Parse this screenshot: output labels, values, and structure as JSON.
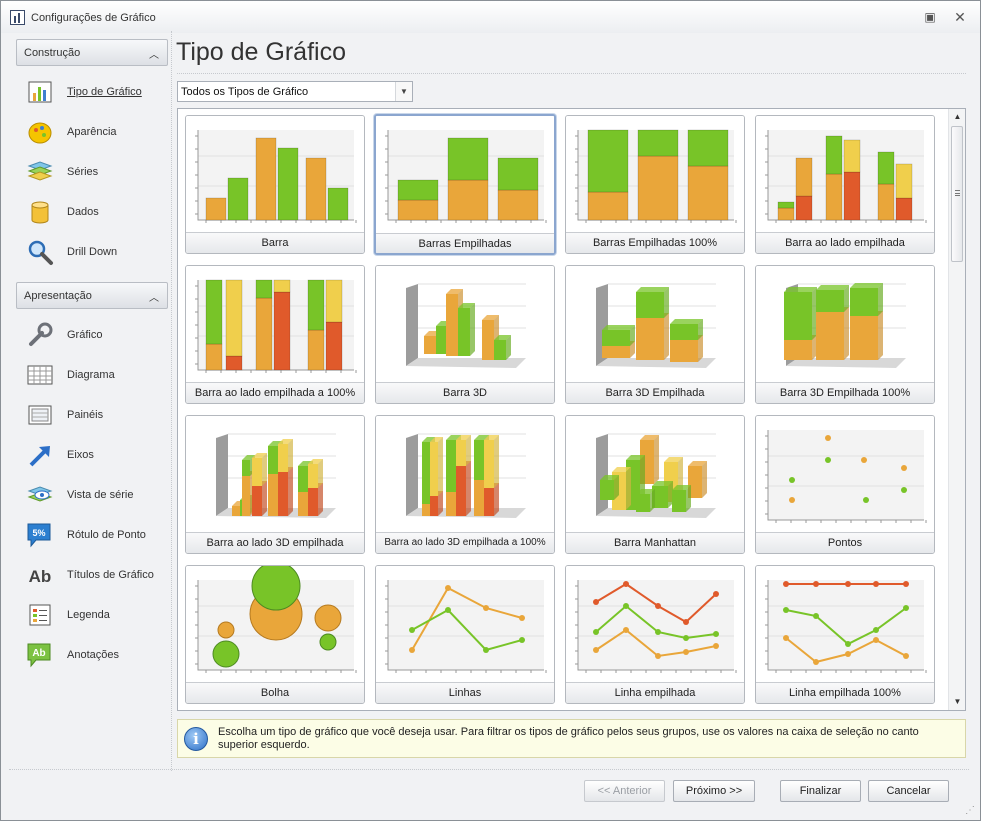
{
  "window": {
    "title": "Configurações de Gráfico",
    "restore_icon": "restore-icon",
    "close_icon": "close-icon"
  },
  "sidebar": {
    "groups": [
      {
        "label": "Construção",
        "items": [
          {
            "label": "Tipo de Gráfico",
            "icon": "bar-chart-icon",
            "active": true
          },
          {
            "label": "Aparência",
            "icon": "palette-icon"
          },
          {
            "label": "Séries",
            "icon": "series-icon"
          },
          {
            "label": "Dados",
            "icon": "database-icon"
          },
          {
            "label": "Drill Down",
            "icon": "magnifier-icon"
          }
        ]
      },
      {
        "label": "Apresentação",
        "items": [
          {
            "label": "Gráfico",
            "icon": "wrench-icon"
          },
          {
            "label": "Diagrama",
            "icon": "diagram-grid-icon"
          },
          {
            "label": "Painéis",
            "icon": "panels-icon"
          },
          {
            "label": "Eixos",
            "icon": "axis-arrow-icon"
          },
          {
            "label": "Vista de série",
            "icon": "series-view-icon"
          },
          {
            "label": "Rótulo de Ponto",
            "icon": "point-label-icon",
            "badge": "5%"
          },
          {
            "label": "Títulos de Gráfico",
            "icon": "chart-title-icon",
            "badge": "Ab"
          },
          {
            "label": "Legenda",
            "icon": "legend-icon"
          },
          {
            "label": "Anotações",
            "icon": "annotation-icon",
            "badge": "Ab"
          }
        ]
      }
    ]
  },
  "main": {
    "title": "Tipo de Gráfico",
    "filter": {
      "selected": "Todos os Tipos de Gráfico"
    },
    "selected_type": "Barras Empilhadas",
    "chart_types": [
      {
        "name": "Barra",
        "kind": "bar"
      },
      {
        "name": "Barras Empilhadas",
        "kind": "stacked"
      },
      {
        "name": "Barras Empilhadas 100%",
        "kind": "stacked100"
      },
      {
        "name": "Barra ao lado empilhada",
        "kind": "sidestacked"
      },
      {
        "name": "Barra ao lado empilhada a 100%",
        "kind": "sidestacked100"
      },
      {
        "name": "Barra 3D",
        "kind": "bar3d"
      },
      {
        "name": "Barra 3D Empilhada",
        "kind": "stacked3d"
      },
      {
        "name": "Barra 3D Empilhada 100%",
        "kind": "stacked3d100"
      },
      {
        "name": "Barra ao lado 3D empilhada",
        "kind": "side3d"
      },
      {
        "name": "Barra ao lado 3D empilhada a 100%",
        "kind": "side3d100"
      },
      {
        "name": "Barra Manhattan",
        "kind": "manhattan"
      },
      {
        "name": "Pontos",
        "kind": "points"
      },
      {
        "name": "Bolha",
        "kind": "bubble"
      },
      {
        "name": "Linhas",
        "kind": "lines"
      },
      {
        "name": "Linha empilhada",
        "kind": "stackedline"
      },
      {
        "name": "Linha empilhada 100%",
        "kind": "stackedline100"
      }
    ],
    "info_text": "Escolha um tipo de gráfico que você deseja usar. Para filtrar os tipos de gráfico pelos seus grupos, use os valores na caixa de seleção no canto superior esquerdo."
  },
  "footer": {
    "prev_label": "<< Anterior",
    "next_label": "Próximo >>",
    "finish_label": "Finalizar",
    "cancel_label": "Cancelar"
  },
  "colors": {
    "orange": "#e9a63a",
    "green": "#78c428",
    "red": "#e05a2b",
    "yellow": "#f0cf4c",
    "selection": "#8ba6cf"
  }
}
